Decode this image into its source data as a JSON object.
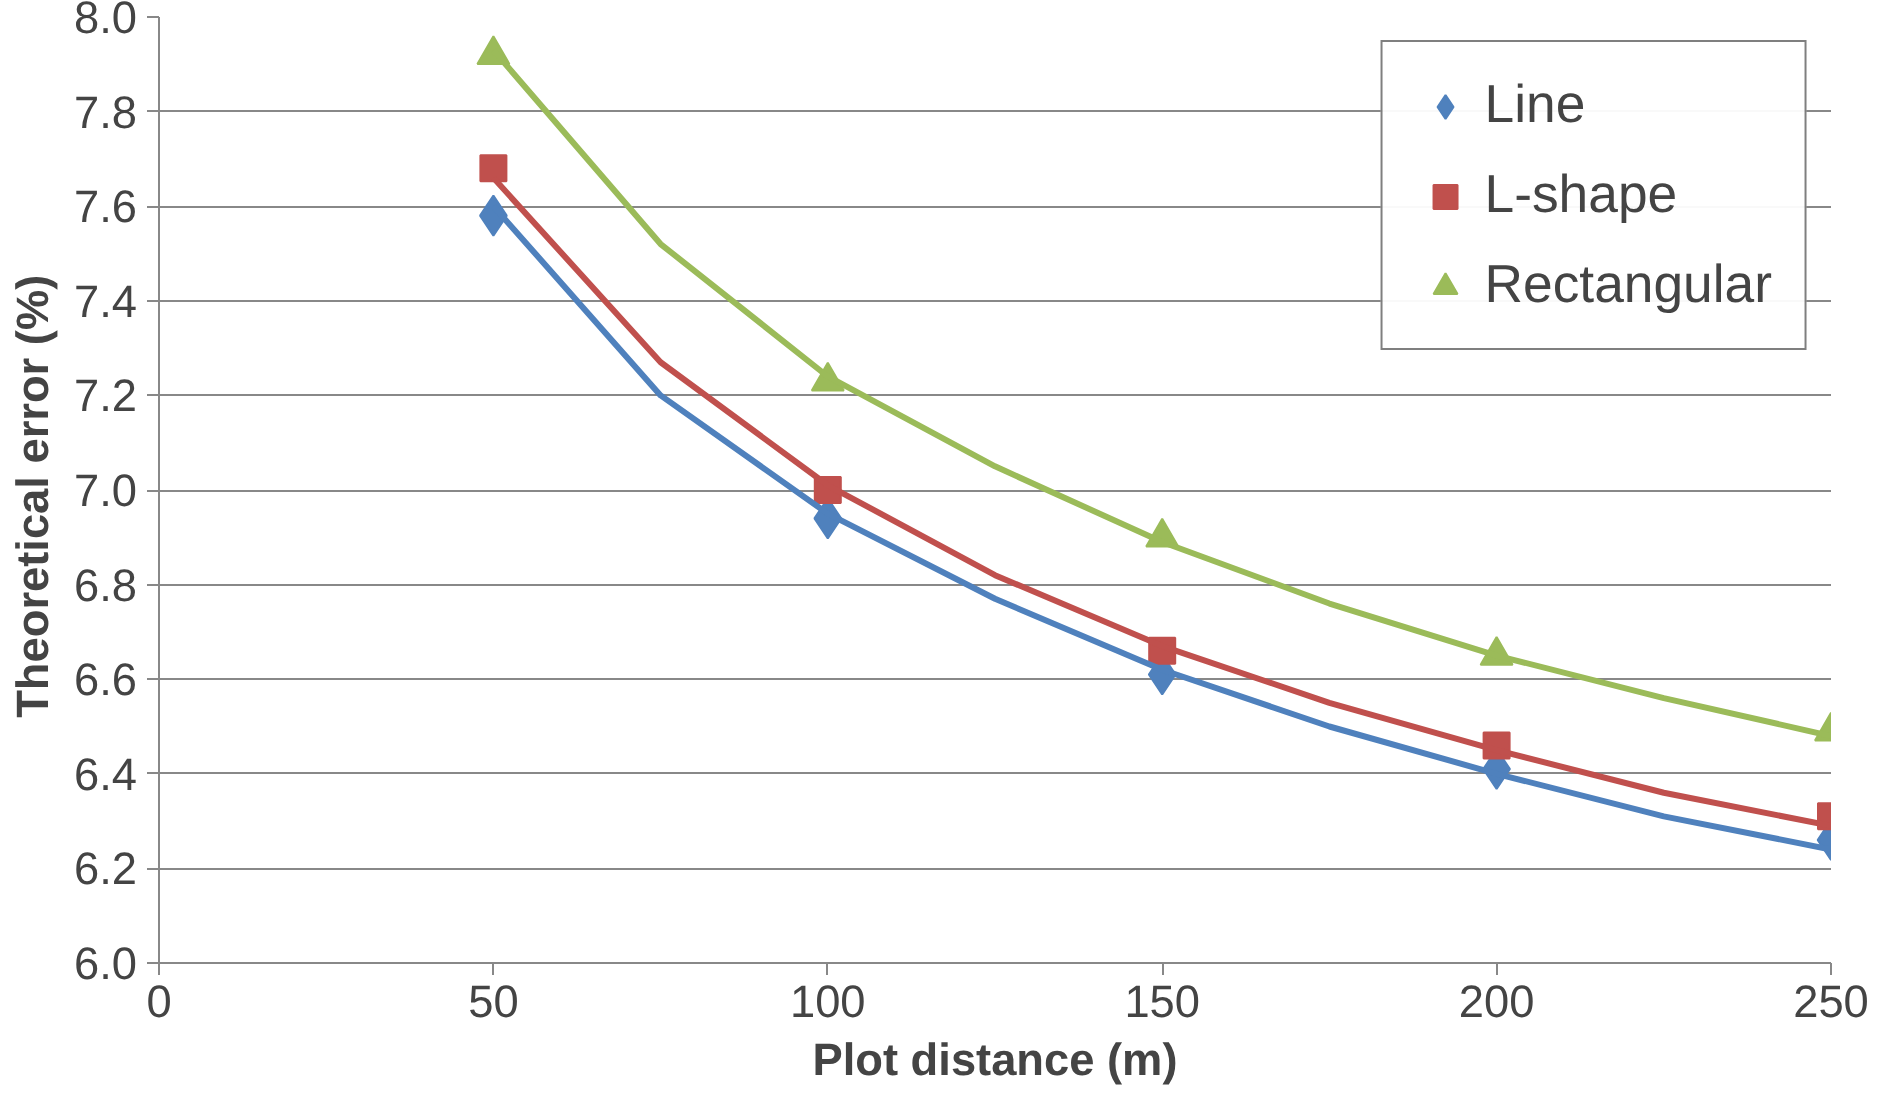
{
  "chart_data": {
    "type": "scatter",
    "xlabel": "Plot distance (m)",
    "ylabel": "Theoretical  error (%)",
    "xlim": [
      0,
      250
    ],
    "xticks": [
      0,
      50,
      100,
      150,
      200,
      250
    ],
    "ylim": [
      6.0,
      8.0
    ],
    "yticks": [
      {
        "value": 6.0,
        "label": "6.0"
      },
      {
        "value": 6.2,
        "label": "6.2"
      },
      {
        "value": 6.4,
        "label": "6.4"
      },
      {
        "value": 6.6,
        "label": "6.6"
      },
      {
        "value": 6.8,
        "label": "6.8"
      },
      {
        "value": 7.0,
        "label": "7.0"
      },
      {
        "value": 7.2,
        "label": "7.2"
      },
      {
        "value": 7.4,
        "label": "7.4"
      },
      {
        "value": 7.6,
        "label": "7.6"
      },
      {
        "value": 7.8,
        "label": "7.8"
      },
      {
        "value": 8.0,
        "label": "8.0"
      }
    ],
    "grid": "y",
    "legend": "top right",
    "x": [
      50,
      100,
      150,
      200,
      250
    ],
    "series": [
      {
        "name": "Line",
        "color": "#4f81bd",
        "marker": "diamond",
        "values": [
          7.58,
          6.94,
          6.61,
          6.41,
          6.26
        ]
      },
      {
        "name": "L-shape",
        "color": "#c0504d",
        "marker": "square",
        "values": [
          7.68,
          7.0,
          6.66,
          6.46,
          6.31
        ]
      },
      {
        "name": "Rectangular",
        "color": "#9bbb59",
        "marker": "triangle",
        "values": [
          7.92,
          7.23,
          6.9,
          6.65,
          6.49
        ]
      },
      {
        "type": "line",
        "color": "#4f81bd",
        "x": [
          50,
          75,
          100,
          125,
          150,
          175,
          200,
          225,
          250
        ],
        "values": [
          7.6,
          7.2,
          6.95,
          6.77,
          6.62,
          6.5,
          6.4,
          6.31,
          6.24
        ]
      },
      {
        "type": "line",
        "color": "#c0504d",
        "x": [
          50,
          75,
          100,
          125,
          150,
          175,
          200,
          225,
          250
        ],
        "values": [
          7.66,
          7.27,
          7.01,
          6.82,
          6.67,
          6.55,
          6.45,
          6.36,
          6.29
        ]
      },
      {
        "type": "line",
        "color": "#9bbb59",
        "x": [
          50,
          75,
          100,
          125,
          150,
          175,
          200,
          225,
          250
        ],
        "values": [
          7.93,
          7.52,
          7.24,
          7.05,
          6.89,
          6.76,
          6.65,
          6.56,
          6.48
        ]
      }
    ]
  }
}
